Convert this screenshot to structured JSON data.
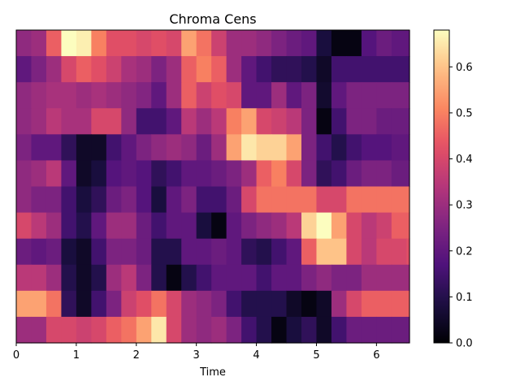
{
  "chart_data": {
    "type": "heatmap",
    "title": "Chroma Cens",
    "xlabel": "Time",
    "ylabel": "",
    "xlim": [
      0,
      6.55
    ],
    "x_ticks": [
      0,
      1,
      2,
      3,
      4,
      5,
      6
    ],
    "x_tick_labels": [
      "0",
      "1",
      "2",
      "3",
      "4",
      "5",
      "6"
    ],
    "colorbar": {
      "colormap": "magma",
      "vmin": 0.0,
      "vmax": 0.68,
      "ticks": [
        0.0,
        0.1,
        0.2,
        0.3,
        0.4,
        0.5,
        0.6
      ],
      "tick_labels": [
        "0.0",
        "0.1",
        "0.2",
        "0.3",
        "0.4",
        "0.5",
        "0.6"
      ]
    },
    "x_bins": [
      0.0,
      0.25,
      0.5,
      0.75,
      1.0,
      1.25,
      1.5,
      1.75,
      2.0,
      2.25,
      2.5,
      2.75,
      3.0,
      3.25,
      3.5,
      3.75,
      4.0,
      4.25,
      4.5,
      4.75,
      5.0,
      5.25,
      5.5,
      5.75,
      6.0,
      6.25,
      6.5
    ],
    "rows": [
      {
        "values": [
          0.28,
          0.3,
          0.45,
          0.68,
          0.66,
          0.5,
          0.42,
          0.42,
          0.4,
          0.42,
          0.4,
          0.55,
          0.48,
          0.38,
          0.3,
          0.3,
          0.28,
          0.25,
          0.22,
          0.2,
          0.08,
          0.02,
          0.02,
          0.18,
          0.22,
          0.2,
          0.2
        ]
      },
      {
        "values": [
          0.2,
          0.25,
          0.3,
          0.4,
          0.45,
          0.42,
          0.38,
          0.32,
          0.3,
          0.25,
          0.3,
          0.45,
          0.5,
          0.45,
          0.3,
          0.2,
          0.15,
          0.12,
          0.12,
          0.1,
          0.05,
          0.15,
          0.15,
          0.15,
          0.15,
          0.15,
          0.15
        ]
      },
      {
        "values": [
          0.28,
          0.3,
          0.32,
          0.32,
          0.3,
          0.32,
          0.3,
          0.28,
          0.26,
          0.2,
          0.3,
          0.45,
          0.38,
          0.42,
          0.4,
          0.2,
          0.2,
          0.3,
          0.2,
          0.25,
          0.06,
          0.2,
          0.25,
          0.25,
          0.25,
          0.25,
          0.25
        ]
      },
      {
        "values": [
          0.28,
          0.3,
          0.35,
          0.32,
          0.32,
          0.4,
          0.4,
          0.28,
          0.15,
          0.15,
          0.2,
          0.35,
          0.3,
          0.35,
          0.5,
          0.55,
          0.4,
          0.38,
          0.35,
          0.25,
          0.02,
          0.15,
          0.25,
          0.25,
          0.22,
          0.22,
          0.22
        ]
      },
      {
        "values": [
          0.25,
          0.2,
          0.2,
          0.12,
          0.05,
          0.05,
          0.15,
          0.2,
          0.25,
          0.28,
          0.3,
          0.28,
          0.22,
          0.3,
          0.55,
          0.65,
          0.62,
          0.62,
          0.55,
          0.25,
          0.15,
          0.1,
          0.15,
          0.18,
          0.18,
          0.2,
          0.2
        ]
      },
      {
        "values": [
          0.28,
          0.3,
          0.35,
          0.2,
          0.05,
          0.08,
          0.18,
          0.2,
          0.18,
          0.12,
          0.15,
          0.2,
          0.2,
          0.22,
          0.25,
          0.3,
          0.45,
          0.5,
          0.4,
          0.25,
          0.12,
          0.15,
          0.22,
          0.25,
          0.25,
          0.22,
          0.22
        ]
      },
      {
        "values": [
          0.28,
          0.25,
          0.25,
          0.15,
          0.08,
          0.12,
          0.22,
          0.25,
          0.18,
          0.08,
          0.2,
          0.25,
          0.15,
          0.15,
          0.22,
          0.4,
          0.48,
          0.48,
          0.48,
          0.48,
          0.4,
          0.4,
          0.48,
          0.48,
          0.48,
          0.48,
          0.48
        ]
      },
      {
        "values": [
          0.4,
          0.35,
          0.3,
          0.15,
          0.1,
          0.2,
          0.3,
          0.3,
          0.22,
          0.15,
          0.2,
          0.2,
          0.08,
          0.02,
          0.2,
          0.25,
          0.28,
          0.3,
          0.35,
          0.62,
          0.68,
          0.55,
          0.4,
          0.35,
          0.38,
          0.45,
          0.45
        ]
      },
      {
        "values": [
          0.22,
          0.2,
          0.22,
          0.08,
          0.05,
          0.15,
          0.25,
          0.25,
          0.22,
          0.1,
          0.1,
          0.2,
          0.2,
          0.22,
          0.2,
          0.12,
          0.1,
          0.15,
          0.2,
          0.45,
          0.6,
          0.6,
          0.4,
          0.35,
          0.4,
          0.4,
          0.42
        ]
      },
      {
        "values": [
          0.35,
          0.35,
          0.3,
          0.1,
          0.05,
          0.1,
          0.3,
          0.35,
          0.25,
          0.1,
          0.02,
          0.1,
          0.15,
          0.2,
          0.2,
          0.2,
          0.15,
          0.2,
          0.2,
          0.25,
          0.28,
          0.25,
          0.25,
          0.3,
          0.3,
          0.3,
          0.3
        ]
      },
      {
        "values": [
          0.55,
          0.55,
          0.48,
          0.12,
          0.05,
          0.15,
          0.25,
          0.38,
          0.42,
          0.48,
          0.4,
          0.3,
          0.28,
          0.25,
          0.15,
          0.1,
          0.1,
          0.1,
          0.05,
          0.02,
          0.05,
          0.3,
          0.4,
          0.45,
          0.45,
          0.45,
          0.45
        ]
      },
      {
        "values": [
          0.3,
          0.3,
          0.4,
          0.4,
          0.38,
          0.4,
          0.45,
          0.48,
          0.55,
          0.65,
          0.4,
          0.3,
          0.28,
          0.3,
          0.25,
          0.15,
          0.1,
          0.02,
          0.08,
          0.12,
          0.05,
          0.15,
          0.22,
          0.22,
          0.22,
          0.22,
          0.22
        ]
      }
    ]
  }
}
